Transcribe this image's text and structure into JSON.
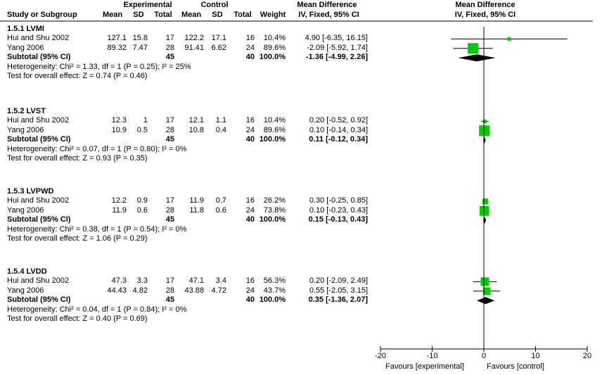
{
  "header": {
    "group1": "Experimental",
    "group2": "Control",
    "col_study": "Study or Subgroup",
    "col_mean1": "Mean",
    "col_sd1": "SD",
    "col_total1": "Total",
    "col_mean2": "Mean",
    "col_sd2": "SD",
    "col_total2": "Total",
    "col_weight": "Weight",
    "effect_title": "Mean Difference",
    "effect_method": "IV, Fixed, 95% CI",
    "plot_title": "Mean Difference",
    "plot_method": "IV, Fixed, 95% CI"
  },
  "chart_data": {
    "type": "forest",
    "xlim": [
      -20,
      20
    ],
    "xticks": [
      "-20",
      "-10",
      "0",
      "10",
      "20"
    ],
    "xlabel_left": "Favours [experimental]",
    "xlabel_right": "Favours [control]",
    "subgroups": [
      {
        "title": "1.5.1 LVMI",
        "studies": [
          {
            "name": "Hui and Shu 2002",
            "mean1": "127.1",
            "sd1": "15.8",
            "total1": "17",
            "mean2": "122.2",
            "sd2": "17.1",
            "total2": "16",
            "weight": "10.4%",
            "ci_text": "4.90 [-6.35, 16.15]",
            "md": 4.9,
            "lo": -6.35,
            "hi": 16.15,
            "w": 10.4
          },
          {
            "name": "Yang 2006",
            "mean1": "89.32",
            "sd1": "7.47",
            "total1": "28",
            "mean2": "91.41",
            "sd2": "6.62",
            "total2": "24",
            "weight": "89.6%",
            "ci_text": "-2.09 [-5.92, 1.74]",
            "md": -2.09,
            "lo": -5.92,
            "hi": 1.74,
            "w": 89.6
          }
        ],
        "subtotal": {
          "label": "Subtotal (95% CI)",
          "total1": "45",
          "total2": "40",
          "weight": "100.0%",
          "ci_text": "-1.36 [-4.99, 2.26]",
          "md": -1.36,
          "lo": -4.99,
          "hi": 2.26
        },
        "heterogeneity": "Heterogeneity: Chi² = 1.33, df = 1 (P = 0.25); I² = 25%",
        "overall": "Test for overall effect: Z = 0.74 (P = 0.46)"
      },
      {
        "title": "1.5.2 LVST",
        "studies": [
          {
            "name": "Hui and Shu 2002",
            "mean1": "12.3",
            "sd1": "1",
            "total1": "17",
            "mean2": "12.1",
            "sd2": "1.1",
            "total2": "16",
            "weight": "10.4%",
            "ci_text": "0.20 [-0.52, 0.92]",
            "md": 0.2,
            "lo": -0.52,
            "hi": 0.92,
            "w": 10.4
          },
          {
            "name": "Yang 2006",
            "mean1": "10.9",
            "sd1": "0.5",
            "total1": "28",
            "mean2": "10.8",
            "sd2": "0.4",
            "total2": "24",
            "weight": "89.6%",
            "ci_text": "0.10 [-0.14, 0.34]",
            "md": 0.1,
            "lo": -0.14,
            "hi": 0.34,
            "w": 89.6
          }
        ],
        "subtotal": {
          "label": "Subtotal (95% CI)",
          "total1": "45",
          "total2": "40",
          "weight": "100.0%",
          "ci_text": "0.11 [-0.12, 0.34]",
          "md": 0.11,
          "lo": -0.12,
          "hi": 0.34
        },
        "heterogeneity": "Heterogeneity: Chi² = 0.07, df = 1 (P = 0.80); I² = 0%",
        "overall": "Test for overall effect: Z = 0.93 (P = 0.35)"
      },
      {
        "title": "1.5.3 LVPWD",
        "studies": [
          {
            "name": "Hui and Shu 2002",
            "mean1": "12.2",
            "sd1": "0.9",
            "total1": "17",
            "mean2": "11.9",
            "sd2": "0.7",
            "total2": "16",
            "weight": "26.2%",
            "ci_text": "0.30 [-0.25, 0.85]",
            "md": 0.3,
            "lo": -0.25,
            "hi": 0.85,
            "w": 26.2
          },
          {
            "name": "Yang 2006",
            "mean1": "11.9",
            "sd1": "0.6",
            "total1": "28",
            "mean2": "11.8",
            "sd2": "0.6",
            "total2": "24",
            "weight": "73.8%",
            "ci_text": "0.10 [-0.23, 0.43]",
            "md": 0.1,
            "lo": -0.23,
            "hi": 0.43,
            "w": 73.8
          }
        ],
        "subtotal": {
          "label": "Subtotal (95% CI)",
          "total1": "45",
          "total2": "40",
          "weight": "100.0%",
          "ci_text": "0.15 [-0.13, 0.43]",
          "md": 0.15,
          "lo": -0.13,
          "hi": 0.43
        },
        "heterogeneity": "Heterogeneity: Chi² = 0.38, df = 1 (P = 0.54); I² = 0%",
        "overall": "Test for overall effect: Z = 1.06 (P = 0.29)"
      },
      {
        "title": "1.5.4 LVDD",
        "studies": [
          {
            "name": "Hui and Shu 2002",
            "mean1": "47.3",
            "sd1": "3.3",
            "total1": "17",
            "mean2": "47.1",
            "sd2": "3.4",
            "total2": "16",
            "weight": "56.3%",
            "ci_text": "0.20 [-2.09, 2.49]",
            "md": 0.2,
            "lo": -2.09,
            "hi": 2.49,
            "w": 56.3
          },
          {
            "name": "Yang 2006",
            "mean1": "44.43",
            "sd1": "4.82",
            "total1": "28",
            "mean2": "43.88",
            "sd2": "4.72",
            "total2": "24",
            "weight": "43.7%",
            "ci_text": "0.55 [-2.05, 3.15]",
            "md": 0.55,
            "lo": -2.05,
            "hi": 3.15,
            "w": 43.7
          }
        ],
        "subtotal": {
          "label": "Subtotal (95% CI)",
          "total1": "45",
          "total2": "40",
          "weight": "100.0%",
          "ci_text": "0.35 [-1.36, 2.07]",
          "md": 0.35,
          "lo": -1.36,
          "hi": 2.07
        },
        "heterogeneity": "Heterogeneity: Chi² = 0.04, df = 1 (P = 0.84); I² = 0%",
        "overall": "Test for overall effect: Z = 0.40 (P = 0.69)"
      }
    ]
  },
  "colors": {
    "square": "#00cc00",
    "diamond": "#000000",
    "line": "#000000"
  }
}
